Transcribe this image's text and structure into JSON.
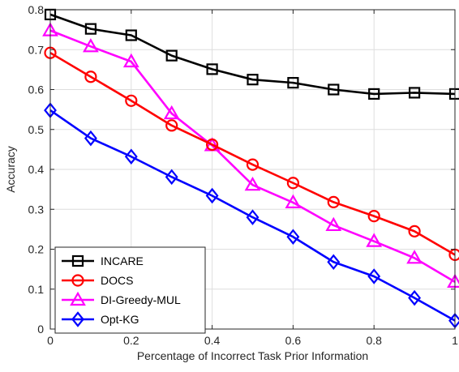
{
  "chart_data": {
    "type": "line",
    "title": "",
    "xlabel": "Percentage of Incorrect Task Prior Information",
    "ylabel": "Accuracy",
    "xlim": [
      0,
      1
    ],
    "ylim": [
      0,
      0.8
    ],
    "xticks": [
      0,
      0.2,
      0.4,
      0.6,
      0.8,
      1
    ],
    "xtick_labels": [
      "0",
      "0.2",
      "0.4",
      "0.6",
      "0.8",
      "1"
    ],
    "yticks": [
      0,
      0.1,
      0.2,
      0.3,
      0.4,
      0.5,
      0.6,
      0.7,
      0.8
    ],
    "ytick_labels": [
      "0",
      "0.1",
      "0.2",
      "0.3",
      "0.4",
      "0.5",
      "0.6",
      "0.7",
      "0.8"
    ],
    "grid": true,
    "legend_position": "bottom-left",
    "x": [
      0,
      0.1,
      0.2,
      0.3,
      0.4,
      0.5,
      0.6,
      0.7,
      0.8,
      0.9,
      1.0
    ],
    "series": [
      {
        "name": "INCARE",
        "color": "#000000",
        "marker": "square",
        "values": [
          0.788,
          0.752,
          0.736,
          0.685,
          0.651,
          0.625,
          0.617,
          0.6,
          0.589,
          0.592,
          0.589
        ]
      },
      {
        "name": "DOCS",
        "color": "#ff0000",
        "marker": "circle",
        "values": [
          0.692,
          0.632,
          0.572,
          0.51,
          0.462,
          0.412,
          0.366,
          0.318,
          0.283,
          0.245,
          0.186
        ]
      },
      {
        "name": "DI-Greedy-MUL",
        "color": "#ff00ff",
        "marker": "triangle",
        "values": [
          0.748,
          0.708,
          0.67,
          0.54,
          0.46,
          0.361,
          0.317,
          0.26,
          0.22,
          0.178,
          0.118
        ]
      },
      {
        "name": "Opt-KG",
        "color": "#0000ff",
        "marker": "diamond",
        "values": [
          0.548,
          0.478,
          0.432,
          0.381,
          0.334,
          0.28,
          0.231,
          0.168,
          0.132,
          0.078,
          0.021
        ]
      }
    ]
  }
}
